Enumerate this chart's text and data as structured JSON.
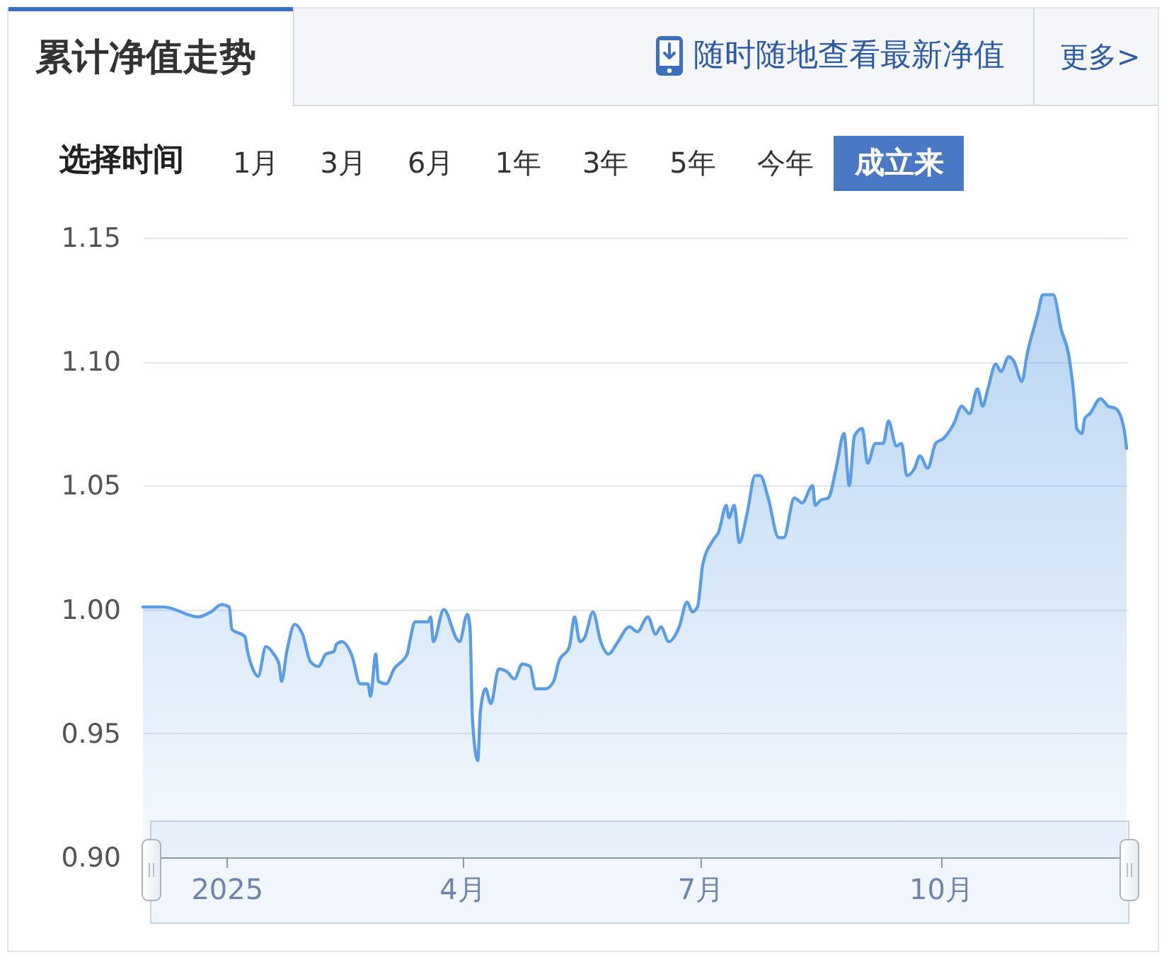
{
  "chart_data": {
    "type": "area",
    "title": "累计净值走势",
    "annotations": [
      "随时随地查看最新净值",
      "更多>",
      "选择时间",
      "1月",
      "3月",
      "6月",
      "1年",
      "3年",
      "5年",
      "今年",
      "成立来"
    ],
    "x": [
      "2024-11-30",
      "2024-12-08",
      "2024-12-21",
      "2024-12-26",
      "2024-12-30",
      "2025-01-02",
      "2025-01-03",
      "2025-01-08",
      "2025-01-09",
      "2025-01-11",
      "2025-01-13",
      "2025-01-16",
      "2025-01-19",
      "2025-01-21",
      "2025-01-22",
      "2025-01-24",
      "2025-01-27",
      "2025-01-30",
      "2025-02-02",
      "2025-02-05",
      "2025-02-08",
      "2025-02-11",
      "2025-02-12",
      "2025-02-14",
      "2025-02-18",
      "2025-02-21",
      "2025-02-24",
      "2025-02-25",
      "2025-02-27",
      "2025-02-28",
      "2025-03-03",
      "2025-03-06",
      "2025-03-11",
      "2025-03-12",
      "2025-03-14",
      "2025-03-19",
      "2025-03-20",
      "2025-03-21",
      "2025-03-25",
      "2025-03-30",
      "2025-03-31",
      "2025-04-03",
      "2025-04-04",
      "2025-04-05",
      "2025-04-07",
      "2025-04-08",
      "2025-04-10",
      "2025-04-12",
      "2025-04-15",
      "2025-04-18",
      "2025-04-21",
      "2025-04-24",
      "2025-04-27",
      "2025-04-29",
      "2025-05-03",
      "2025-05-06",
      "2025-05-08",
      "2025-05-12",
      "2025-05-14",
      "2025-05-16",
      "2025-05-18",
      "2025-05-21",
      "2025-05-24",
      "2025-05-27",
      "2025-05-30",
      "2025-06-04",
      "2025-06-07",
      "2025-06-11",
      "2025-06-14",
      "2025-06-16",
      "2025-06-19",
      "2025-06-23",
      "2025-06-26",
      "2025-06-28",
      "2025-06-30",
      "2025-07-02",
      "2025-07-06",
      "2025-07-08",
      "2025-07-11",
      "2025-07-12",
      "2025-07-14",
      "2025-07-16",
      "2025-07-19",
      "2025-07-22",
      "2025-07-24",
      "2025-07-27",
      "2025-07-31",
      "2025-08-02",
      "2025-08-06",
      "2025-08-09",
      "2025-08-13",
      "2025-08-14",
      "2025-08-16",
      "2025-08-19",
      "2025-08-22",
      "2025-08-25",
      "2025-08-27",
      "2025-08-29",
      "2025-09-01",
      "2025-09-03",
      "2025-09-06",
      "2025-09-09",
      "2025-09-11",
      "2025-09-14",
      "2025-09-16",
      "2025-09-18",
      "2025-09-21",
      "2025-09-23",
      "2025-09-26",
      "2025-09-29",
      "2025-10-02",
      "2025-10-06",
      "2025-10-09",
      "2025-10-12",
      "2025-10-15",
      "2025-10-17",
      "2025-10-19",
      "2025-10-22",
      "2025-10-24",
      "2025-10-27",
      "2025-10-29",
      "2025-11-01",
      "2025-11-03",
      "2025-11-07",
      "2025-11-09",
      "2025-11-13",
      "2025-11-16",
      "2025-11-19",
      "2025-11-21",
      "2025-11-22",
      "2025-11-24",
      "2025-11-25",
      "2025-11-27",
      "2025-12-01",
      "2025-12-04",
      "2025-12-07",
      "2025-12-10",
      "2025-12-11"
    ],
    "series": [
      {
        "color": "#5a9de4",
        "values": [
          1.001,
          1.001,
          0.997,
          0.999,
          1.002,
          1.001,
          0.992,
          0.989,
          0.983,
          0.976,
          0.973,
          0.985,
          0.982,
          0.978,
          0.971,
          0.983,
          0.994,
          0.99,
          0.979,
          0.977,
          0.982,
          0.983,
          0.986,
          0.987,
          0.981,
          0.97,
          0.97,
          0.965,
          0.982,
          0.971,
          0.97,
          0.976,
          0.982,
          0.987,
          0.995,
          0.995,
          0.997,
          0.987,
          1.0,
          0.988,
          0.987,
          0.998,
          0.993,
          0.955,
          0.939,
          0.959,
          0.968,
          0.962,
          0.976,
          0.975,
          0.972,
          0.978,
          0.977,
          0.968,
          0.968,
          0.971,
          0.979,
          0.985,
          0.997,
          0.987,
          0.989,
          0.999,
          0.987,
          0.982,
          0.986,
          0.993,
          0.991,
          0.997,
          0.99,
          0.993,
          0.987,
          0.993,
          1.003,
          0.999,
          1.001,
          1.018,
          1.028,
          1.031,
          1.042,
          1.037,
          1.042,
          1.027,
          1.039,
          1.054,
          1.054,
          1.045,
          1.029,
          1.029,
          1.045,
          1.043,
          1.05,
          1.042,
          1.044,
          1.045,
          1.057,
          1.071,
          1.05,
          1.07,
          1.073,
          1.059,
          1.067,
          1.067,
          1.076,
          1.066,
          1.067,
          1.054,
          1.057,
          1.062,
          1.057,
          1.067,
          1.069,
          1.075,
          1.082,
          1.079,
          1.089,
          1.082,
          1.089,
          1.099,
          1.096,
          1.102,
          1.1,
          1.092,
          1.103,
          1.119,
          1.127,
          1.127,
          1.113,
          1.102,
          1.085,
          1.073,
          1.071,
          1.077,
          1.079,
          1.085,
          1.082,
          1.081,
          1.073,
          1.065
        ]
      }
    ],
    "xlim": [
      "2024-11-30",
      "2025-12-11"
    ],
    "xticks": [
      {
        "value": "2025-01-01",
        "label": "2025"
      },
      {
        "value": "2025-04-01",
        "label": "4月"
      },
      {
        "value": "2025-07-01",
        "label": "7月"
      },
      {
        "value": "2025-10-01",
        "label": "10月"
      }
    ],
    "ylim": [
      0.9,
      1.15
    ],
    "yticks": [
      {
        "value": 0.9,
        "label": "0.90"
      },
      0.95,
      {
        "value": 1.0,
        "label": "1.00"
      },
      1.05,
      {
        "value": 1.1,
        "label": "1.10"
      },
      1.15
    ],
    "grid": "y"
  }
}
